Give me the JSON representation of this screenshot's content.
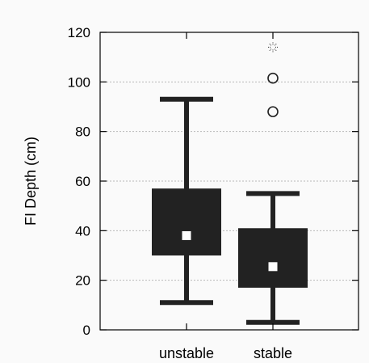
{
  "chart_data": {
    "type": "boxplot",
    "title": "",
    "xlabel": "",
    "ylabel": "FI Depth (cm)",
    "ylim": [
      0,
      120
    ],
    "yticks": [
      0,
      20,
      40,
      60,
      80,
      100,
      120
    ],
    "grid": true,
    "categories": [
      "unstable",
      "stable"
    ],
    "boxes": [
      {
        "category": "unstable",
        "whisker_low": 11,
        "q1": 30,
        "q3": 57,
        "whisker_high": 93,
        "mean": 38,
        "outliers": [],
        "extremes": []
      },
      {
        "category": "stable",
        "whisker_low": 3,
        "q1": 17,
        "q3": 41,
        "whisker_high": 55,
        "mean": 25.5,
        "outliers": [
          88,
          101.5
        ],
        "extremes": [
          114
        ]
      }
    ],
    "colors": {
      "box": "#222222",
      "mean_marker": "#ffffff",
      "grid": "#b8b8b8"
    }
  }
}
